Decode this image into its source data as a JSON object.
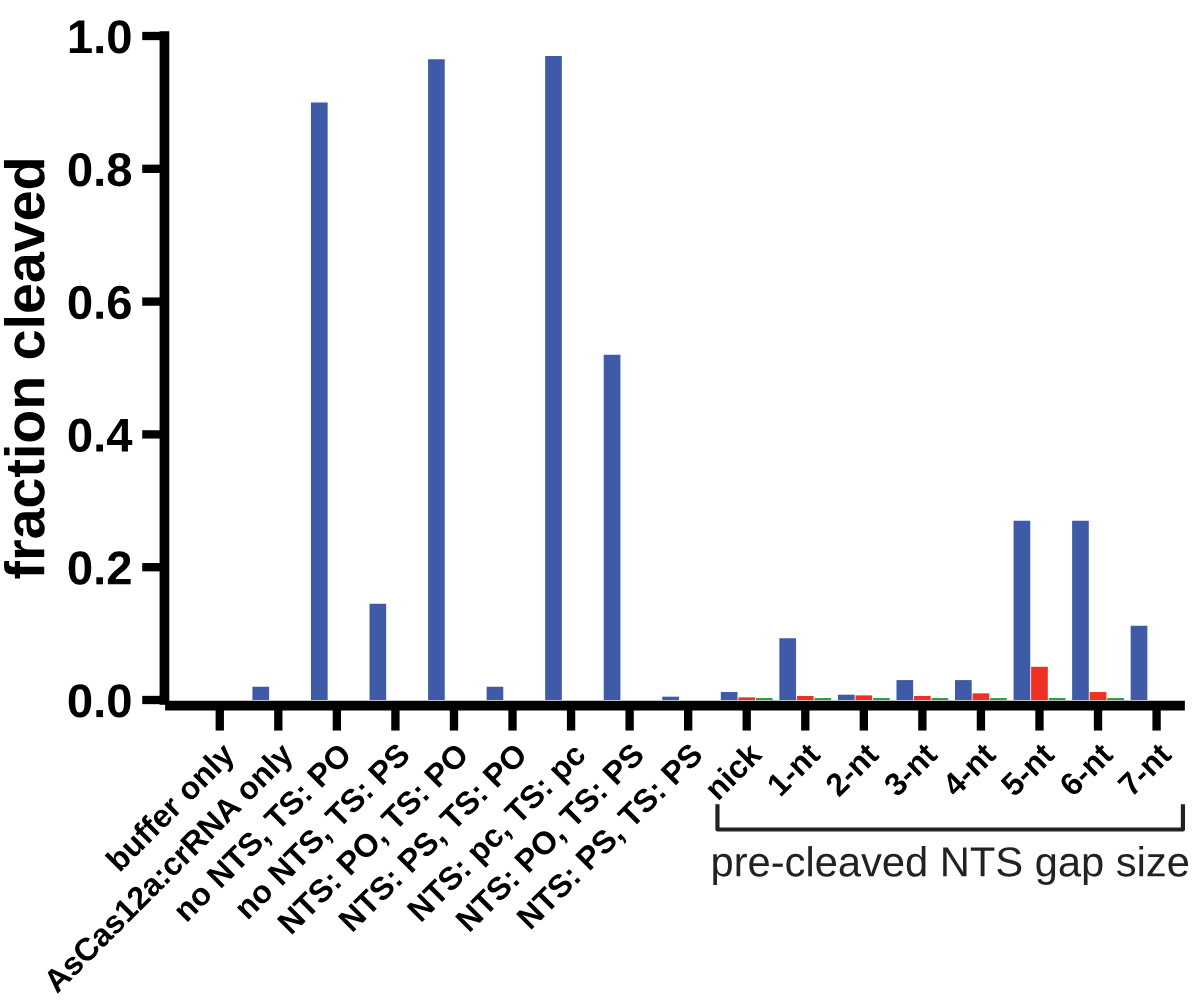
{
  "chart_data": {
    "type": "bar",
    "ylabel": "fraction cleaved",
    "categories": [
      "buffer only",
      "AsCas12a:crRNA only",
      "no NTS, TS: PO",
      "no NTS, TS: PS",
      "NTS: PO, TS: PO",
      "NTS: PS, TS: PO",
      "NTS: pc, TS: pc",
      "NTS: PO, TS: PS",
      "NTS: PS, TS: PS",
      "nick",
      "1-nt",
      "2-nt",
      "3-nt",
      "4-nt",
      "5-nt",
      "6-nt",
      "7-nt"
    ],
    "series": [
      {
        "color": "#3f5ba8",
        "values": [
          0.0,
          0.02,
          0.9,
          0.145,
          0.965,
          0.02,
          0.97,
          0.52,
          0.005,
          0.012,
          0.093,
          0.008,
          0.03,
          0.03,
          0.27,
          0.27,
          0.112
        ]
      },
      {
        "color": "#ee3124",
        "values": [
          null,
          null,
          null,
          null,
          null,
          null,
          null,
          null,
          null,
          0.004,
          0.006,
          0.007,
          0.006,
          0.01,
          0.05,
          0.012,
          0.0
        ]
      },
      {
        "color": "#2e9e4a",
        "values": [
          null,
          null,
          null,
          null,
          null,
          null,
          null,
          null,
          null,
          0.003,
          0.003,
          0.003,
          0.003,
          0.003,
          0.003,
          0.003,
          0.0
        ]
      }
    ],
    "ylim": [
      0,
      1.0
    ],
    "yticks": [
      {
        "value": 0,
        "label": "0.0"
      },
      {
        "value": 0.2,
        "label": "0.2"
      },
      {
        "value": 0.4,
        "label": "0.4"
      },
      {
        "value": 0.6,
        "label": "0.6"
      },
      {
        "value": 0.8,
        "label": "0.8"
      },
      {
        "value": 1.0,
        "label": "1.0"
      }
    ],
    "grid": false,
    "legend": false,
    "annotations": [
      "pre-cleaved NTS gap size"
    ]
  }
}
